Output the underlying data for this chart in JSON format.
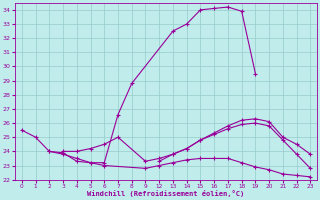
{
  "xlabel": "Windchill (Refroidissement éolien,°C)",
  "bg_color": "#c0ecec",
  "line_color": "#990099",
  "grid_color": "#99cccc",
  "ylim": [
    22,
    34.5
  ],
  "ytick_vals": [
    22,
    23,
    24,
    25,
    26,
    27,
    28,
    29,
    30,
    31,
    32,
    33,
    34
  ],
  "xtick_labels": [
    "0",
    "1",
    "2",
    "3",
    "4",
    "5",
    "6",
    "7",
    "8",
    "9",
    "12",
    "13",
    "14",
    "15",
    "16",
    "17",
    "18",
    "19",
    "20",
    "21",
    "22",
    "23"
  ],
  "line1_xidx": [
    0,
    1,
    2,
    3,
    4,
    5,
    6,
    7,
    8,
    11,
    12,
    13,
    14,
    15,
    16,
    17
  ],
  "line1_y": [
    25.5,
    25.0,
    24.0,
    23.9,
    23.3,
    23.2,
    23.2,
    26.6,
    28.8,
    32.5,
    33.0,
    34.0,
    34.1,
    34.2,
    33.9,
    29.5
  ],
  "line2_xidx": [
    3,
    4,
    5,
    6,
    7,
    9,
    10,
    11,
    12,
    13,
    14,
    15,
    16,
    17,
    18,
    19,
    20,
    21
  ],
  "line2_y": [
    24.0,
    24.0,
    24.2,
    24.5,
    25.0,
    23.3,
    23.5,
    23.8,
    24.2,
    24.8,
    25.3,
    25.8,
    26.2,
    26.3,
    26.1,
    25.0,
    24.5,
    23.8
  ],
  "line3_xidx": [
    2,
    3,
    4,
    5,
    6,
    9,
    10,
    11,
    12,
    13,
    14,
    15,
    16,
    17,
    18,
    19,
    20,
    21
  ],
  "line3_y": [
    24.0,
    23.8,
    23.5,
    23.2,
    23.0,
    22.8,
    23.0,
    23.2,
    23.4,
    23.5,
    23.5,
    23.5,
    23.2,
    22.9,
    22.7,
    22.4,
    22.3,
    22.2
  ],
  "line4_xidx": [
    10,
    11,
    12,
    13,
    14,
    15,
    16,
    17,
    18,
    19,
    20,
    21
  ],
  "line4_y": [
    23.3,
    23.8,
    24.2,
    24.8,
    25.2,
    25.6,
    25.9,
    26.0,
    25.8,
    24.8,
    23.8,
    22.8
  ]
}
